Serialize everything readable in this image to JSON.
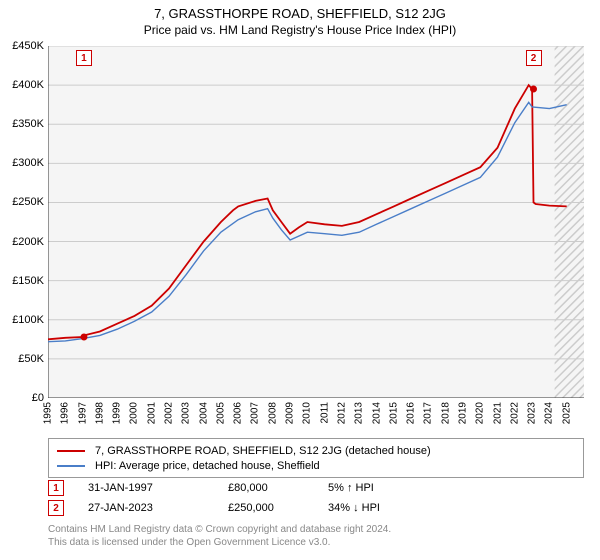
{
  "title": "7, GRASSTHORPE ROAD, SHEFFIELD, S12 2JG",
  "subtitle": "Price paid vs. HM Land Registry's House Price Index (HPI)",
  "chart": {
    "type": "line",
    "background_color": "#f5f5f5",
    "future_hatch_color": "#cccccc",
    "grid_color": "#cccccc",
    "axis_color": "#333333",
    "x": {
      "min": 1995,
      "max": 2026,
      "ticks": [
        1995,
        1996,
        1997,
        1998,
        1999,
        2000,
        2001,
        2002,
        2003,
        2004,
        2005,
        2006,
        2007,
        2008,
        2009,
        2010,
        2011,
        2012,
        2013,
        2014,
        2015,
        2016,
        2017,
        2018,
        2019,
        2020,
        2021,
        2022,
        2023,
        2024,
        2025
      ],
      "future_start": 2024.3
    },
    "y": {
      "min": 0,
      "max": 450000,
      "ticks": [
        0,
        50000,
        100000,
        150000,
        200000,
        250000,
        300000,
        350000,
        400000,
        450000
      ],
      "tick_labels": [
        "£0",
        "£50K",
        "£100K",
        "£150K",
        "£200K",
        "£250K",
        "£300K",
        "£350K",
        "£400K",
        "£450K"
      ]
    },
    "series": [
      {
        "name": "price_paid",
        "label": "7, GRASSTHORPE ROAD, SHEFFIELD, S12 2JG (detached house)",
        "color": "#cc0000",
        "width": 1.8,
        "x": [
          1995,
          1996,
          1997,
          1997.08,
          1998,
          1999,
          2000,
          2001,
          2002,
          2003,
          2004,
          2005,
          2005.7,
          2006,
          2007,
          2007.7,
          2008,
          2008.5,
          2009,
          2009.5,
          2010,
          2011,
          2012,
          2013,
          2014,
          2015,
          2016,
          2017,
          2018,
          2019,
          2020,
          2021,
          2022,
          2022.8,
          2023,
          2023.08,
          2023.2,
          2024,
          2025
        ],
        "y": [
          75000,
          77000,
          78000,
          80000,
          85000,
          95000,
          105000,
          118000,
          140000,
          170000,
          200000,
          225000,
          240000,
          245000,
          252000,
          255000,
          240000,
          225000,
          210000,
          218000,
          225000,
          222000,
          220000,
          225000,
          235000,
          245000,
          255000,
          265000,
          275000,
          285000,
          295000,
          320000,
          370000,
          400000,
          395000,
          250000,
          248000,
          246000,
          245000
        ]
      },
      {
        "name": "hpi",
        "label": "HPI: Average price, detached house, Sheffield",
        "color": "#4a7ec8",
        "width": 1.4,
        "x": [
          1995,
          1996,
          1997,
          1998,
          1999,
          2000,
          2001,
          2002,
          2003,
          2004,
          2005,
          2006,
          2007,
          2007.7,
          2008,
          2008.5,
          2009,
          2010,
          2011,
          2012,
          2013,
          2014,
          2015,
          2016,
          2017,
          2018,
          2019,
          2020,
          2021,
          2022,
          2022.8,
          2023,
          2024,
          2025
        ],
        "y": [
          72000,
          73000,
          76000,
          80000,
          88000,
          98000,
          110000,
          130000,
          158000,
          188000,
          212000,
          228000,
          238000,
          242000,
          230000,
          215000,
          202000,
          212000,
          210000,
          208000,
          212000,
          222000,
          232000,
          242000,
          252000,
          262000,
          272000,
          282000,
          308000,
          352000,
          378000,
          372000,
          370000,
          375000
        ]
      }
    ],
    "events": [
      {
        "n": "1",
        "x": 1997.08,
        "color": "#cc0000"
      },
      {
        "n": "2",
        "x": 2023.08,
        "color": "#cc0000"
      }
    ]
  },
  "legend": {
    "items": [
      {
        "color": "#cc0000",
        "label": "7, GRASSTHORPE ROAD, SHEFFIELD, S12 2JG (detached house)"
      },
      {
        "color": "#4a7ec8",
        "label": "HPI: Average price, detached house, Sheffield"
      }
    ]
  },
  "events_table": [
    {
      "n": "1",
      "color": "#cc0000",
      "date": "31-JAN-1997",
      "price": "£80,000",
      "diff": "5% ↑ HPI"
    },
    {
      "n": "2",
      "color": "#cc0000",
      "date": "27-JAN-2023",
      "price": "£250,000",
      "diff": "34% ↓ HPI"
    }
  ],
  "attribution": {
    "line1": "Contains HM Land Registry data © Crown copyright and database right 2024.",
    "line2": "This data is licensed under the Open Government Licence v3.0."
  }
}
